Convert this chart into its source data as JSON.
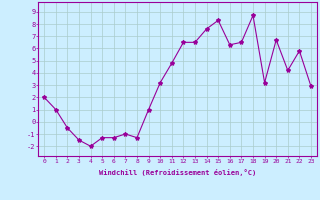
{
  "x": [
    0,
    1,
    2,
    3,
    4,
    5,
    6,
    7,
    8,
    9,
    10,
    11,
    12,
    13,
    14,
    15,
    16,
    17,
    18,
    19,
    20,
    21,
    22,
    23
  ],
  "y": [
    2,
    1,
    -0.5,
    -1.5,
    -2,
    -1.3,
    -1.3,
    -1,
    -1.3,
    1,
    3.2,
    4.8,
    6.5,
    6.5,
    7.6,
    8.3,
    6.3,
    6.5,
    8.7,
    3.2,
    6.7,
    4.2,
    5.8,
    2.9
  ],
  "xlabel": "Windchill (Refroidissement éolien,°C)",
  "xticks": [
    0,
    1,
    2,
    3,
    4,
    5,
    6,
    7,
    8,
    9,
    10,
    11,
    12,
    13,
    14,
    15,
    16,
    17,
    18,
    19,
    20,
    21,
    22,
    23
  ],
  "yticks": [
    -2,
    -1,
    0,
    1,
    2,
    3,
    4,
    5,
    6,
    7,
    8,
    9
  ],
  "ylim": [
    -2.8,
    9.8
  ],
  "xlim": [
    -0.5,
    23.5
  ],
  "line_color": "#990099",
  "marker": "*",
  "bg_color": "#cceeff",
  "grid_color": "#aacccc",
  "label_color": "#990099",
  "font_name": "monospace"
}
